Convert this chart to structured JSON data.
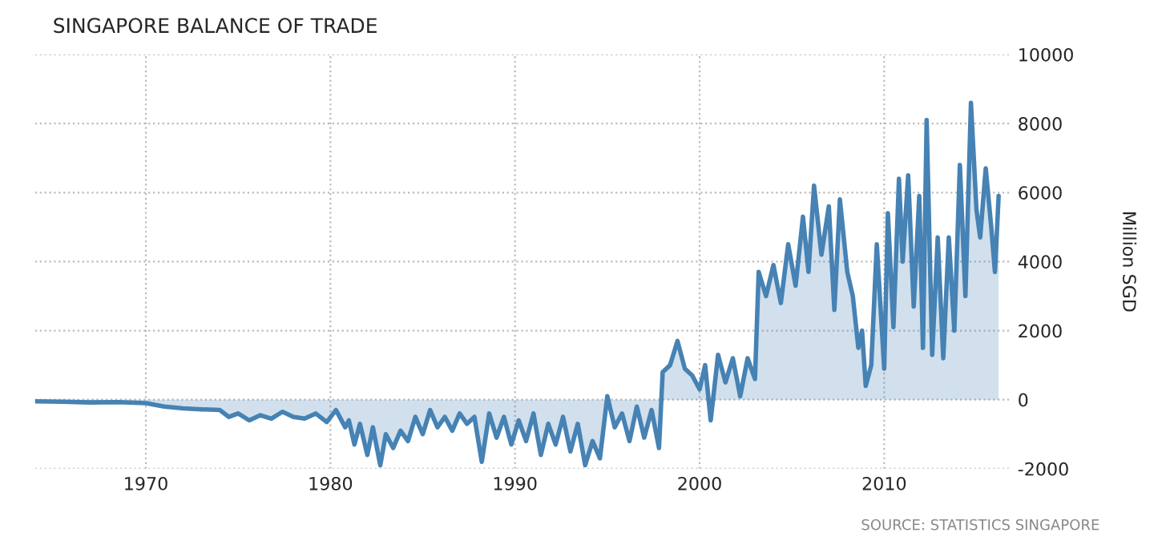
{
  "chart_data": {
    "type": "area",
    "title": "SINGAPORE BALANCE OF TRADE",
    "y2label": "Million SGD",
    "annotations": [
      "SOURCE: STATISTICS SINGAPORE"
    ],
    "xlim": [
      1964,
      2016.8
    ],
    "xticks": [
      1970,
      1980,
      1990,
      2000,
      2010
    ],
    "y2lim": [
      -2000,
      10000
    ],
    "y2ticks": [
      -2000,
      0,
      2000,
      4000,
      6000,
      8000,
      10000
    ],
    "grid": true,
    "line_style": "solid",
    "legend": false,
    "series": [
      {
        "color": "#4682b4",
        "axis": "y2",
        "x": [
          1964.0,
          1965.5,
          1967.0,
          1968.5,
          1970.0,
          1971.0,
          1972.0,
          1973.0,
          1974.0,
          1974.5,
          1975.0,
          1975.6,
          1976.2,
          1976.8,
          1977.4,
          1978.0,
          1978.6,
          1979.2,
          1979.8,
          1980.3,
          1980.8,
          1981.0,
          1981.3,
          1981.6,
          1982.0,
          1982.3,
          1982.7,
          1983.0,
          1983.4,
          1983.8,
          1984.2,
          1984.6,
          1985.0,
          1985.4,
          1985.8,
          1986.2,
          1986.6,
          1987.0,
          1987.4,
          1987.8,
          1988.2,
          1988.6,
          1989.0,
          1989.4,
          1989.8,
          1990.2,
          1990.6,
          1991.0,
          1991.4,
          1991.8,
          1992.2,
          1992.6,
          1993.0,
          1993.4,
          1993.8,
          1994.2,
          1994.6,
          1995.0,
          1995.4,
          1995.8,
          1996.2,
          1996.6,
          1997.0,
          1997.4,
          1997.8,
          1998.0,
          1998.4,
          1998.8,
          1999.2,
          1999.6,
          2000.0,
          2000.3,
          2000.6,
          2001.0,
          2001.4,
          2001.8,
          2002.2,
          2002.6,
          2003.0,
          2003.2,
          2003.6,
          2004.0,
          2004.4,
          2004.8,
          2005.2,
          2005.6,
          2005.9,
          2006.2,
          2006.6,
          2007.0,
          2007.3,
          2007.6,
          2008.0,
          2008.3,
          2008.6,
          2008.8,
          2009.0,
          2009.3,
          2009.6,
          2010.0,
          2010.2,
          2010.5,
          2010.8,
          2011.0,
          2011.3,
          2011.6,
          2011.9,
          2012.1,
          2012.3,
          2012.6,
          2012.9,
          2013.2,
          2013.5,
          2013.8,
          2014.1,
          2014.4,
          2014.7,
          2015.0,
          2015.2,
          2015.5,
          2015.8,
          2016.0,
          2016.2
        ],
        "values": [
          -50,
          -60,
          -80,
          -70,
          -100,
          -200,
          -250,
          -280,
          -300,
          -500,
          -400,
          -600,
          -450,
          -550,
          -350,
          -500,
          -550,
          -400,
          -650,
          -300,
          -800,
          -600,
          -1300,
          -700,
          -1600,
          -800,
          -1900,
          -1000,
          -1400,
          -900,
          -1200,
          -500,
          -1000,
          -300,
          -800,
          -500,
          -900,
          -400,
          -700,
          -500,
          -1800,
          -400,
          -1100,
          -500,
          -1300,
          -600,
          -1200,
          -400,
          -1600,
          -700,
          -1300,
          -500,
          -1500,
          -700,
          -1900,
          -1200,
          -1700,
          100,
          -800,
          -400,
          -1200,
          -200,
          -1100,
          -300,
          -1400,
          800,
          1000,
          1700,
          900,
          700,
          300,
          1000,
          -600,
          1300,
          500,
          1200,
          100,
          1200,
          600,
          3700,
          3000,
          3900,
          2800,
          4500,
          3300,
          5300,
          3700,
          6200,
          4200,
          5600,
          2600,
          5800,
          3700,
          3000,
          1500,
          2000,
          400,
          1000,
          4500,
          900,
          5400,
          2100,
          6400,
          4000,
          6500,
          2700,
          5900,
          1500,
          8100,
          1300,
          4700,
          1200,
          4700,
          2000,
          6800,
          3000,
          8600,
          5500,
          4700,
          6700,
          5000,
          3700,
          5900
        ]
      }
    ]
  }
}
